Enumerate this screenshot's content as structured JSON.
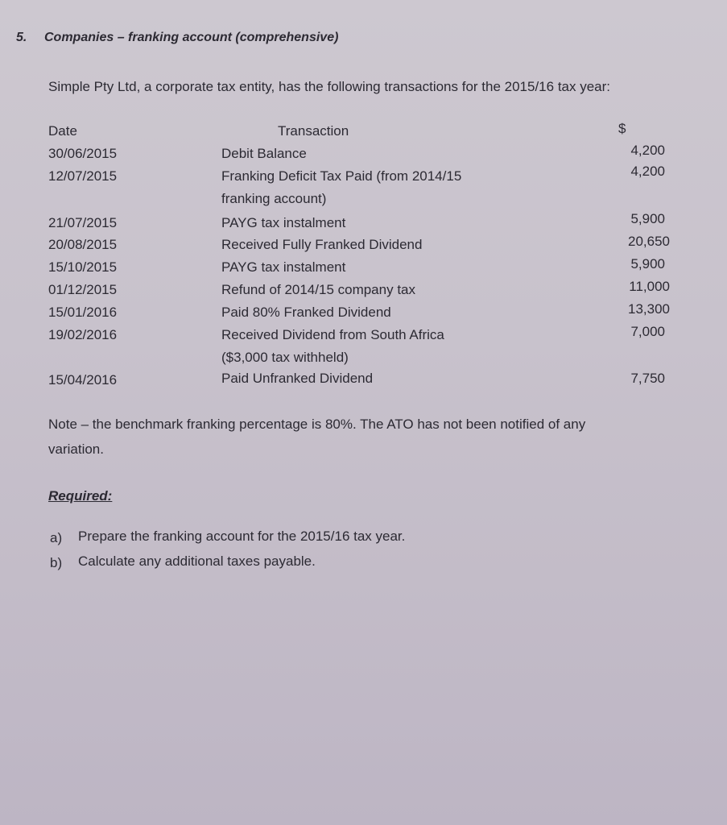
{
  "question": {
    "number": "5.",
    "title": "Companies – franking account (comprehensive)",
    "intro": "Simple Pty Ltd, a corporate tax entity, has the following transactions for the 2015/16 tax year:"
  },
  "table": {
    "headers": {
      "date": "Date",
      "transaction": "Transaction",
      "amount": "$"
    },
    "rows": [
      {
        "date": "30/06/2015",
        "transaction": "Debit Balance",
        "amount": "4,200"
      },
      {
        "date": "12/07/2015",
        "transaction": "Franking Deficit Tax Paid (from 2014/15",
        "transaction_cont": "franking account)",
        "amount": "4,200"
      },
      {
        "date": "21/07/2015",
        "transaction": "PAYG tax instalment",
        "amount": "5,900"
      },
      {
        "date": "20/08/2015",
        "transaction": "Received Fully Franked Dividend",
        "amount": "20,650"
      },
      {
        "date": "15/10/2015",
        "transaction": "PAYG tax instalment",
        "amount": "5,900"
      },
      {
        "date": "01/12/2015",
        "transaction": "Refund of 2014/15 company tax",
        "amount": "11,000"
      },
      {
        "date": "15/01/2016",
        "transaction": "Paid 80% Franked Dividend",
        "amount": "13,300"
      },
      {
        "date": "19/02/2016",
        "transaction": "Received Dividend from South Africa",
        "transaction_cont": "($3,000 tax withheld)",
        "amount": "7,000"
      },
      {
        "date": "15/04/2016",
        "transaction": "Paid Unfranked Dividend",
        "amount": "7,750"
      }
    ]
  },
  "note": {
    "line1": "Note – the benchmark franking percentage is 80%. The ATO has not been notified of any",
    "line2": "variation."
  },
  "required": {
    "heading": "Required:",
    "items": [
      {
        "marker": "a)",
        "text": "Prepare the franking account for the 2015/16 tax year."
      },
      {
        "marker": "b)",
        "text": "Calculate any additional taxes payable."
      }
    ]
  }
}
